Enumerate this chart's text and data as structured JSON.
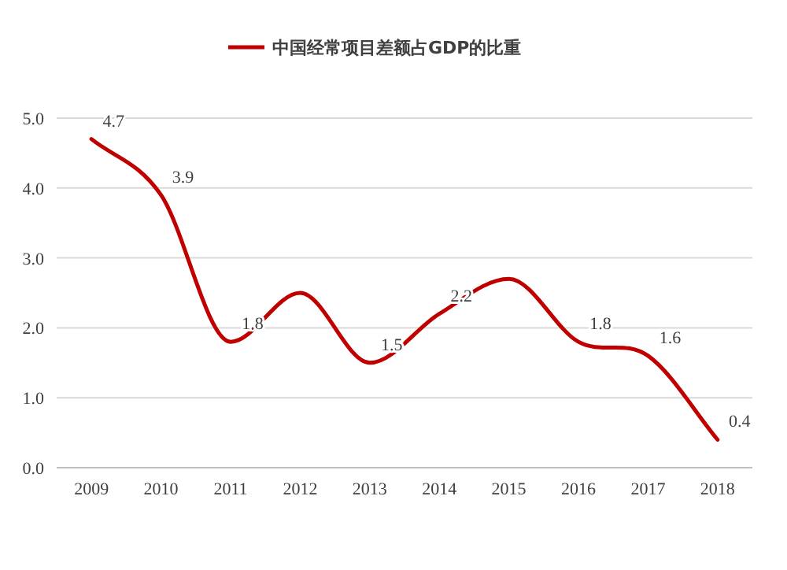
{
  "chart_data": {
    "type": "line",
    "categories": [
      "2009",
      "2010",
      "2011",
      "2012",
      "2013",
      "2014",
      "2015",
      "2016",
      "2017",
      "2018"
    ],
    "series": [
      {
        "name": "中国经常项目差额占GDP的比重",
        "color": "#c00000",
        "values": [
          4.7,
          3.9,
          1.8,
          2.5,
          1.5,
          2.2,
          2.7,
          1.8,
          1.6,
          0.4
        ],
        "value_labels": [
          "4.7",
          "3.9",
          "1.8",
          null,
          "1.5",
          "2.2",
          null,
          "1.8",
          "1.6",
          "0.4"
        ]
      }
    ],
    "ylim": [
      0,
      5
    ],
    "yticks": [
      {
        "value": 0,
        "label": "0.0"
      },
      {
        "value": 1,
        "label": "1.0"
      },
      {
        "value": 2,
        "label": "2.0"
      },
      {
        "value": 3,
        "label": "3.0"
      },
      {
        "value": 4,
        "label": "4.0"
      },
      {
        "value": 5,
        "label": "5.0"
      }
    ],
    "grid": "y",
    "legend": "top",
    "marker": "none",
    "line_style": "solid"
  }
}
